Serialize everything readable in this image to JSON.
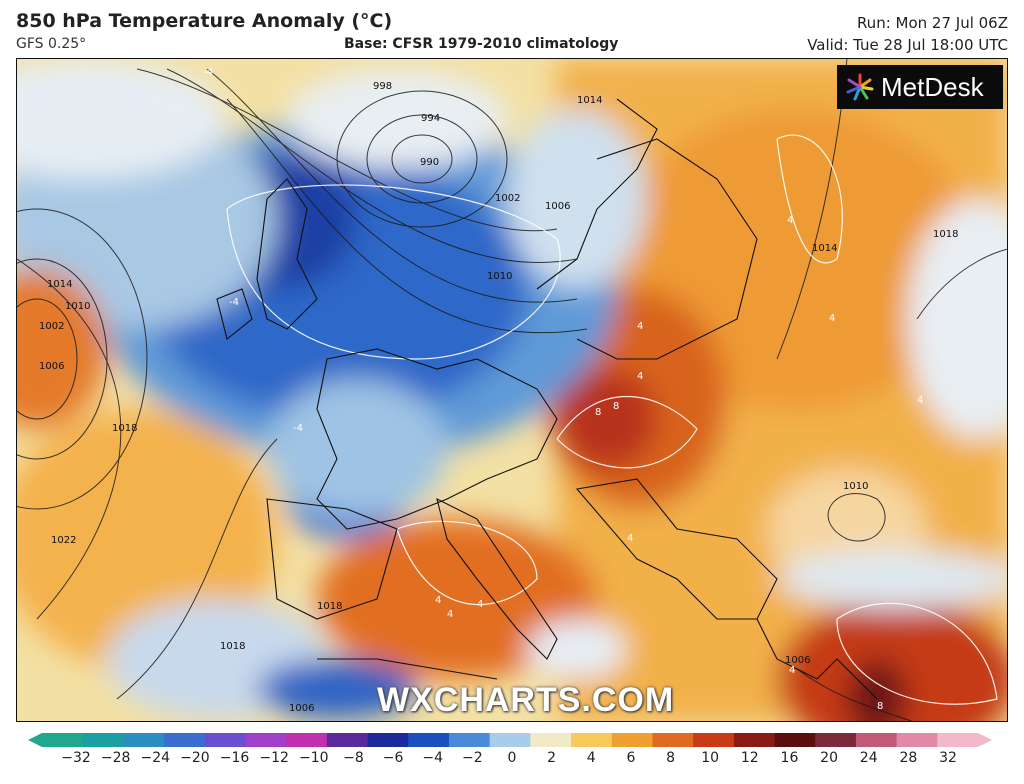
{
  "header": {
    "title": "850 hPa Temperature Anomaly (°C)",
    "model": "GFS 0.25°",
    "base": "Base: CFSR 1979-2010 climatology",
    "run": "Run: Mon 27 Jul 06Z",
    "valid": "Valid: Tue 28 Jul 18:00 UTC"
  },
  "logo": {
    "text": "MetDesk",
    "icon": "metdesk-star-icon"
  },
  "watermark": "WXCHARTS.COM",
  "isobar_labels": [
    "998",
    "994",
    "990",
    "1002",
    "1006",
    "1010",
    "1014",
    "1010",
    "1002",
    "1006",
    "1018",
    "1022",
    "1018",
    "1014",
    "1018",
    "1010",
    "1006",
    "1006",
    "1014",
    "1018"
  ],
  "anomaly_labels": [
    "-4",
    "-4",
    "-4",
    "4",
    "4",
    "4",
    "8",
    "8",
    "8",
    "4",
    "4",
    "4",
    "4",
    "4",
    "4",
    "4"
  ],
  "colorbar": {
    "ticks": [
      "−32",
      "−28",
      "−24",
      "−20",
      "−16",
      "−12",
      "−10",
      "−8",
      "−6",
      "−4",
      "−2",
      "0",
      "2",
      "4",
      "6",
      "8",
      "10",
      "12",
      "16",
      "20",
      "24",
      "28",
      "32"
    ],
    "colors": [
      "#1fa88c",
      "#1aa0a0",
      "#2a8fbf",
      "#3a6fd0",
      "#6a4fd0",
      "#a040c8",
      "#c030b0",
      "#5a2a9a",
      "#1a2a9a",
      "#1a4fc0",
      "#4a8ad8",
      "#a8cde8",
      "#f0eac8",
      "#f7c85a",
      "#f0a030",
      "#e06a20",
      "#c83a18",
      "#8a1a14",
      "#5a0e0e",
      "#7a2a3a",
      "#c05a78",
      "#e08aa8",
      "#f2b8cc"
    ]
  }
}
